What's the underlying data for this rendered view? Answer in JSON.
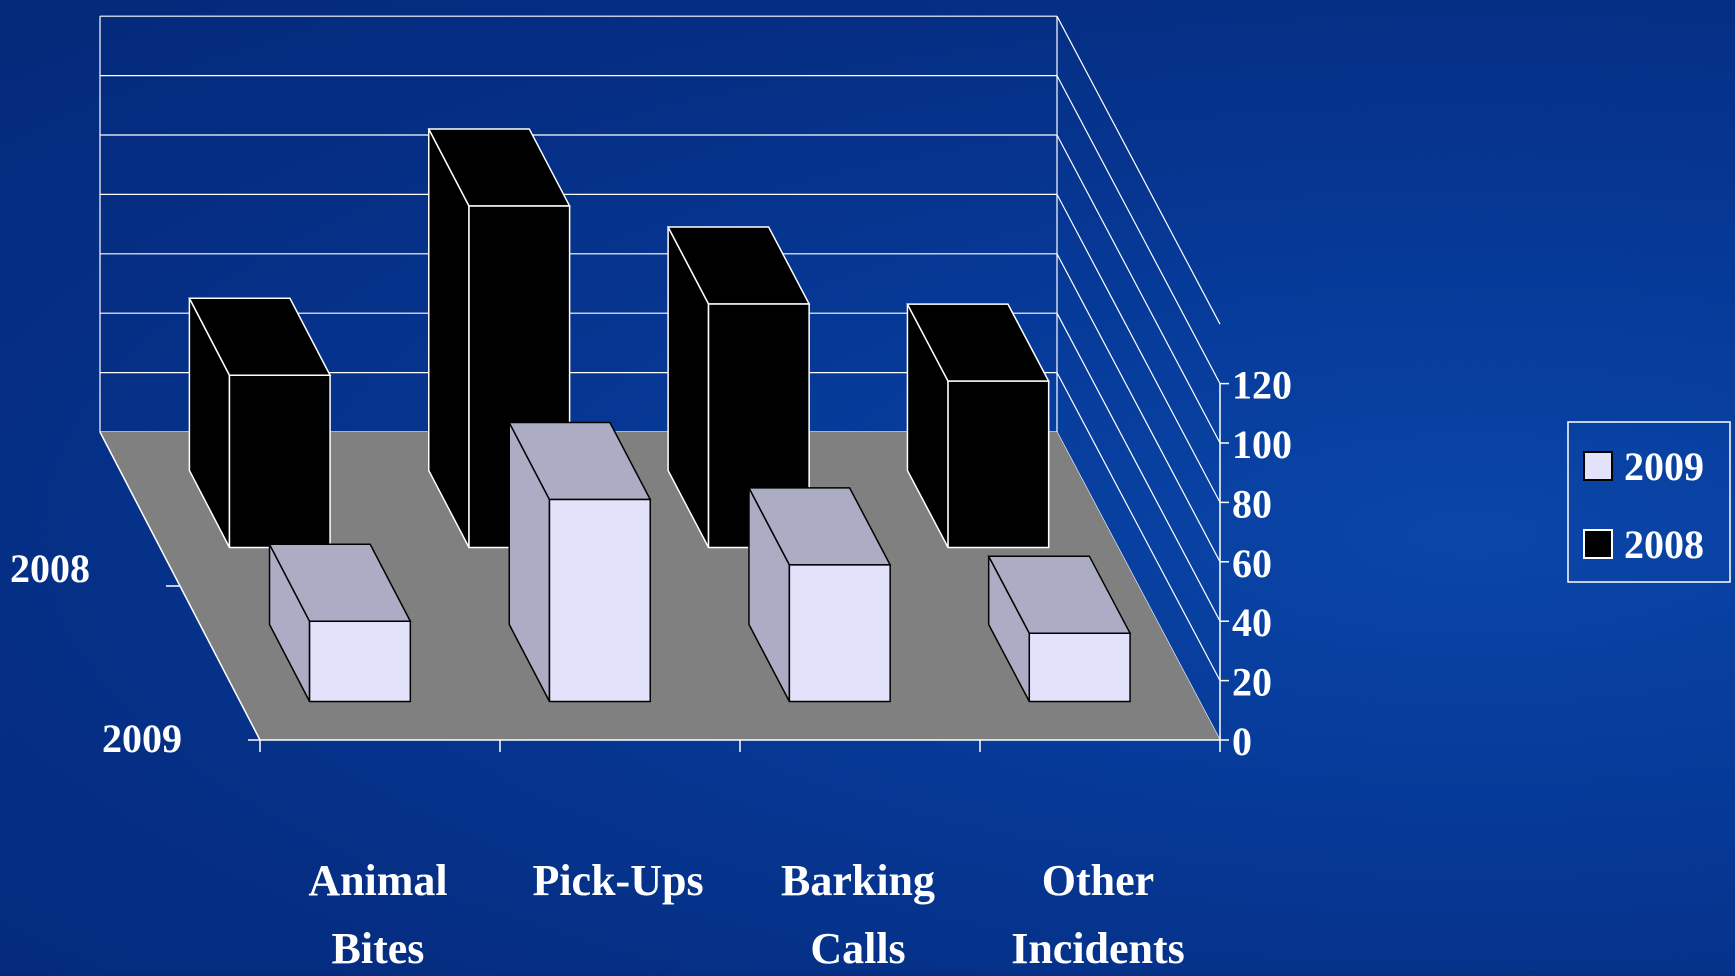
{
  "chart_data": {
    "type": "bar",
    "style": "3d-column",
    "title": "",
    "xlabel": "",
    "ylabel": "",
    "categories": [
      [
        "Animal",
        "Bites"
      ],
      [
        "Pick-Ups"
      ],
      [
        "Barking",
        "Calls"
      ],
      [
        "Other",
        "Incidents"
      ]
    ],
    "series": [
      {
        "name": "2009",
        "values": [
          27,
          68,
          46,
          23
        ],
        "color": "#e2e2fb",
        "side_color": "#acacc4",
        "top_color": "#acacc4"
      },
      {
        "name": "2008",
        "values": [
          58,
          115,
          82,
          56
        ],
        "color": "#000000",
        "side_color": "#000000",
        "top_color": "#000000"
      }
    ],
    "depth_axis_labels": [
      "2008",
      "2009"
    ],
    "y_ticks": [
      "0",
      "20",
      "40",
      "60",
      "80",
      "100",
      "120"
    ],
    "ylim": [
      0,
      120
    ],
    "grid": true,
    "legend_position": "right",
    "colors": {
      "background": "#063a99",
      "floor": "#808080",
      "lines": "#ffffff",
      "text": "#ffffff"
    }
  }
}
